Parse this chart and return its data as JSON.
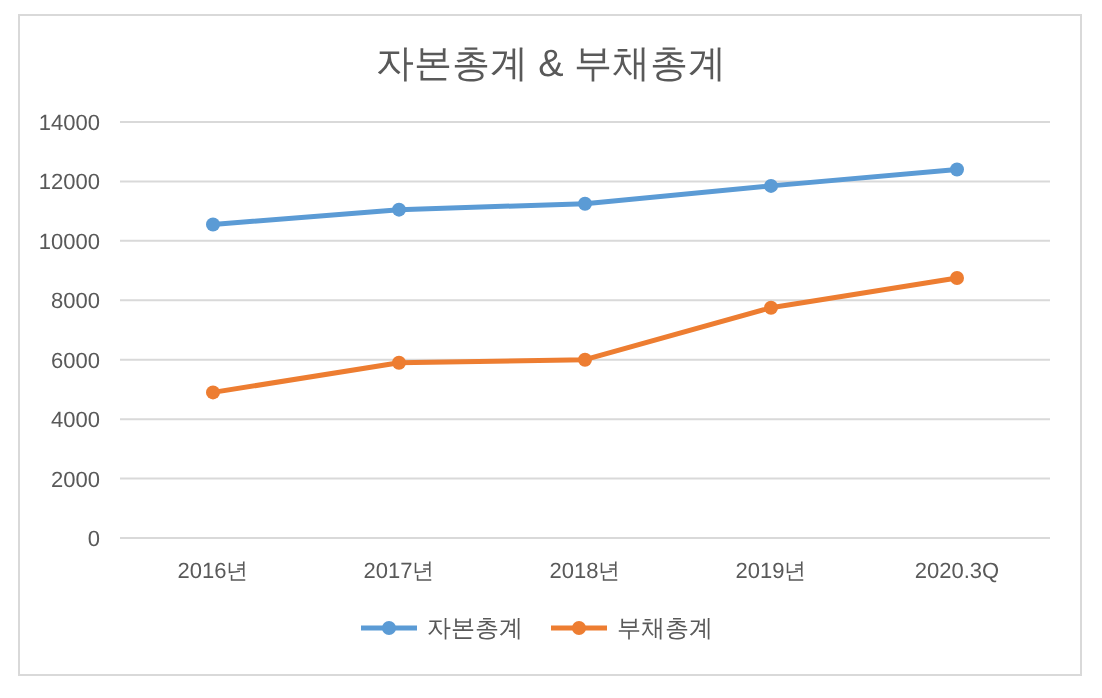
{
  "chart_data": {
    "type": "line",
    "title": "자본총계 & 부채총계",
    "categories": [
      "2016년",
      "2017년",
      "2018년",
      "2019년",
      "2020.3Q"
    ],
    "series": [
      {
        "name": "자본총계",
        "color": "#5b9bd5",
        "values": [
          10550,
          11050,
          11250,
          11850,
          12400
        ]
      },
      {
        "name": "부채총계",
        "color": "#ed7d31",
        "values": [
          4900,
          5900,
          6000,
          7750,
          8750
        ]
      }
    ],
    "ylim": [
      0,
      14000
    ],
    "yticks": [
      0,
      2000,
      4000,
      6000,
      8000,
      10000,
      12000,
      14000
    ],
    "grid": "y",
    "legend": "bottom",
    "marker": "circle",
    "line_style": "solid"
  }
}
